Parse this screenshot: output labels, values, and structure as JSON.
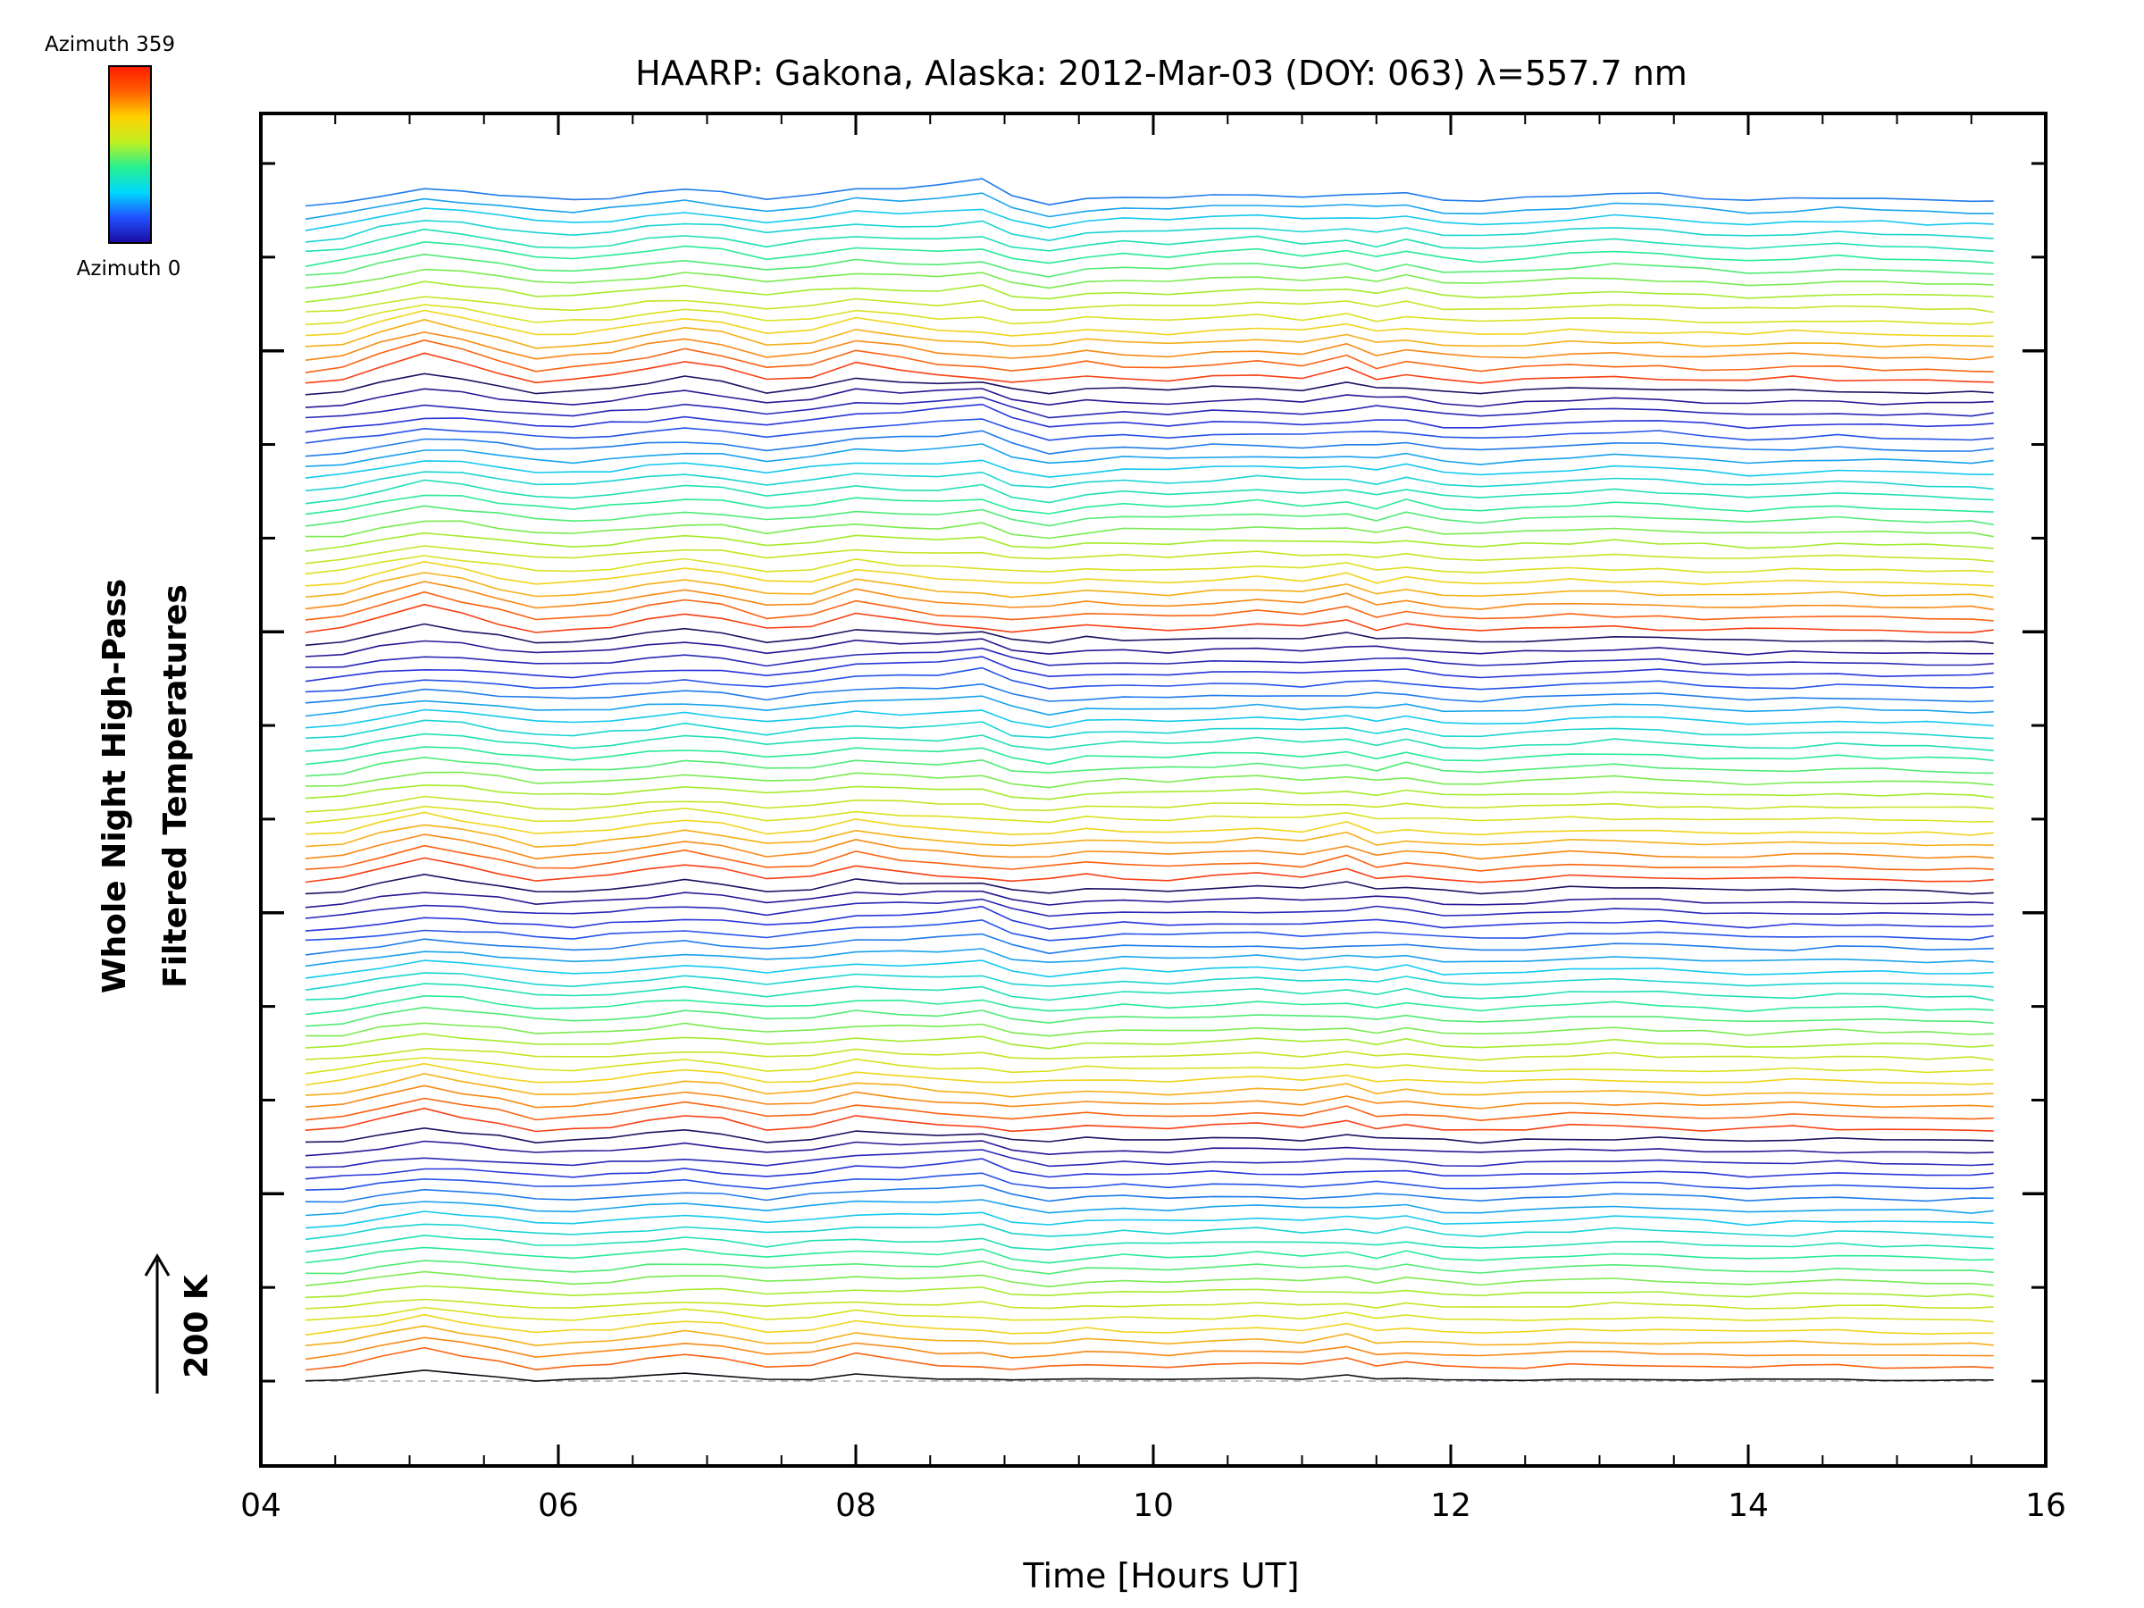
{
  "chart_data": {
    "type": "line",
    "title": "HAARP: Gakona,  Alaska: 2012-Mar-03 (DOY: 063) λ=557.7 nm",
    "xlabel": "Time [Hours UT]",
    "ylabel_line1": "Whole Night High-Pass",
    "ylabel_line2": "Filtered Temperatures",
    "xlim": [
      4,
      16
    ],
    "x_ticks": [
      "04",
      "06",
      "08",
      "10",
      "12",
      "14",
      "16"
    ],
    "scale_bar": "200 K",
    "colorbar": {
      "top_label": "Azimuth 359",
      "bottom_label": "Azimuth 0",
      "colors": [
        "#1a0aa0",
        "#2050ff",
        "#00d8ff",
        "#28f090",
        "#c0f020",
        "#ffd000",
        "#ff6000",
        "#ff1a00"
      ]
    },
    "n_traces": 100,
    "baseline_style": "dashed-gray",
    "time_x": [
      4.3,
      4.55,
      4.8,
      5.1,
      5.35,
      5.6,
      5.85,
      6.1,
      6.35,
      6.6,
      6.85,
      7.1,
      7.4,
      7.7,
      8.0,
      8.3,
      8.55,
      8.85,
      9.05,
      9.3,
      9.55,
      9.8,
      10.1,
      10.4,
      10.7,
      11.0,
      11.3,
      11.5,
      11.7,
      11.95,
      12.2,
      12.5,
      12.8,
      13.1,
      13.4,
      13.7,
      14.0,
      14.3,
      14.6,
      14.9,
      15.2,
      15.5,
      15.65
    ],
    "group_shapes": {
      "front": [
        0,
        6,
        22,
        40,
        28,
        15,
        2,
        5,
        10,
        20,
        30,
        22,
        5,
        8,
        28,
        18,
        10,
        6,
        2,
        5,
        12,
        8,
        5,
        10,
        14,
        8,
        22,
        6,
        12,
        6,
        2,
        5,
        10,
        8,
        6,
        4,
        5,
        8,
        6,
        4,
        3,
        2,
        2
      ],
      "mid": [
        0,
        5,
        18,
        30,
        26,
        18,
        10,
        8,
        12,
        18,
        24,
        20,
        10,
        16,
        24,
        20,
        18,
        24,
        8,
        2,
        10,
        14,
        12,
        16,
        20,
        14,
        18,
        10,
        20,
        8,
        6,
        10,
        14,
        18,
        14,
        10,
        6,
        8,
        12,
        10,
        8,
        6,
        4
      ],
      "back": [
        0,
        4,
        10,
        16,
        14,
        12,
        8,
        6,
        10,
        14,
        16,
        12,
        6,
        14,
        22,
        26,
        32,
        40,
        20,
        4,
        8,
        10,
        8,
        12,
        10,
        8,
        12,
        20,
        14,
        6,
        4,
        8,
        12,
        14,
        16,
        10,
        6,
        8,
        10,
        8,
        6,
        6,
        10
      ]
    }
  }
}
